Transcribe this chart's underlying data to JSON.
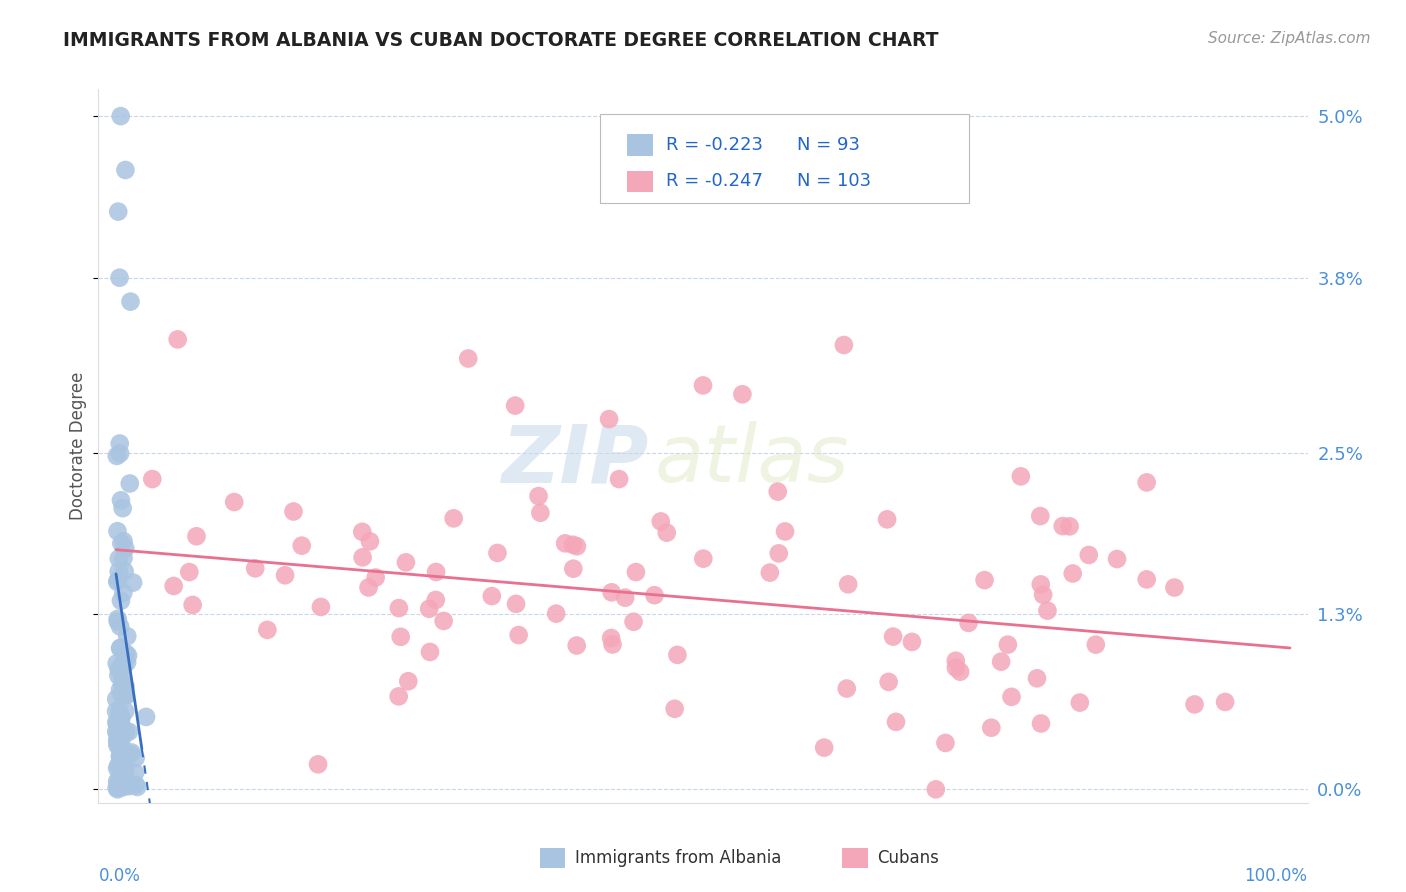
{
  "title": "IMMIGRANTS FROM ALBANIA VS CUBAN DOCTORATE DEGREE CORRELATION CHART",
  "source_text": "Source: ZipAtlas.com",
  "watermark_zip": "ZIP",
  "watermark_atlas": "atlas",
  "ylabel": "Doctorate Degree",
  "ytick_vals": [
    0.0,
    1.3,
    2.5,
    3.8,
    5.0
  ],
  "ytick_labels": [
    "0.0%",
    "1.3%",
    "2.5%",
    "3.8%",
    "5.0%"
  ],
  "xlim": [
    0,
    100
  ],
  "ylim": [
    0,
    5.2
  ],
  "legend_label1": "Immigrants from Albania",
  "legend_label2": "Cubans",
  "r1": -0.223,
  "n1": 93,
  "r2": -0.247,
  "n2": 103,
  "color_albania": "#a8c4e0",
  "color_cuba": "#f4a7b9",
  "trendline_color_albania": "#3a6fbf",
  "trendline_color_cuba": "#e87090",
  "background_color": "#ffffff",
  "grid_color": "#c8d8e8",
  "title_color": "#222222",
  "source_color": "#999999",
  "ylabel_color": "#555555",
  "axis_label_color": "#4a90d9",
  "legend_text_color": "#2266cc",
  "bottom_legend_color": "#333333"
}
